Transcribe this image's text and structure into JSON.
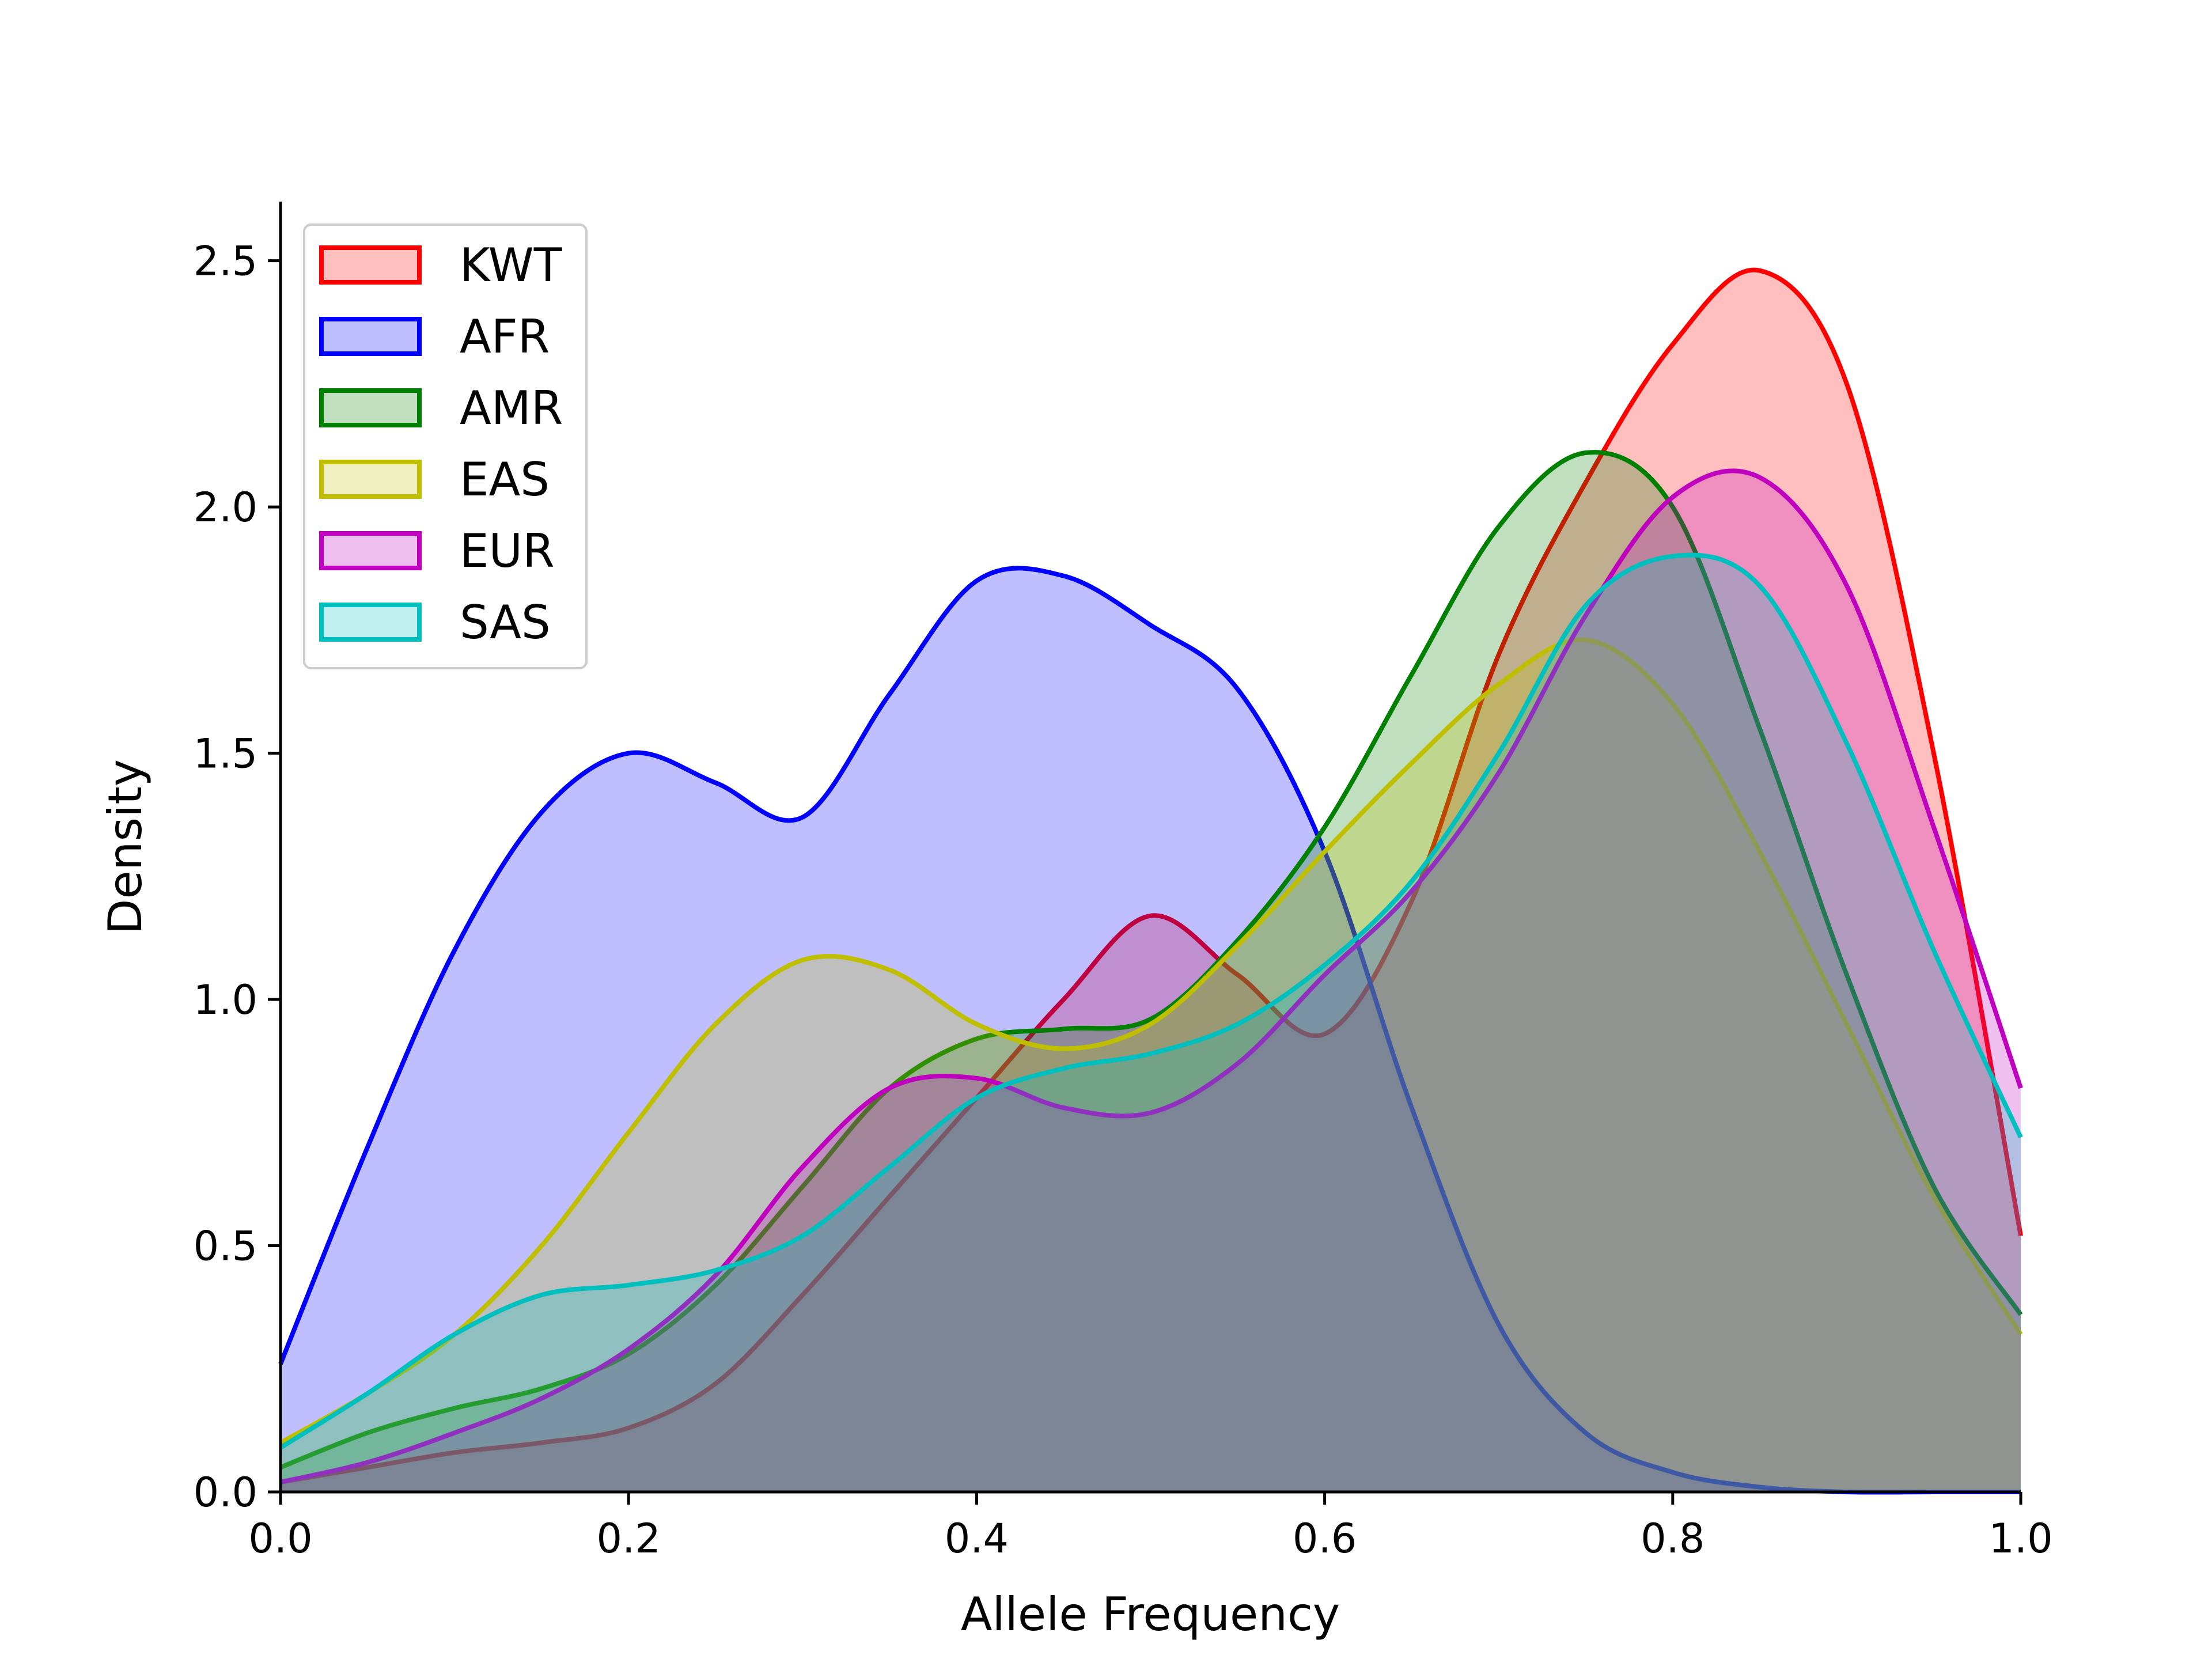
{
  "chart_data": {
    "type": "area",
    "title": "",
    "xlabel": "Allele Frequency",
    "ylabel": "Density",
    "xlim": [
      0.0,
      1.0
    ],
    "ylim": [
      0.0,
      2.62
    ],
    "xticks": [
      "0.0",
      "0.2",
      "0.4",
      "0.6",
      "0.8",
      "1.0"
    ],
    "yticks": [
      "0.0",
      "0.5",
      "1.0",
      "1.5",
      "2.0",
      "2.5"
    ],
    "grid": false,
    "legend_position": "upper-left",
    "x": [
      0.0,
      0.05,
      0.1,
      0.15,
      0.2,
      0.25,
      0.3,
      0.35,
      0.4,
      0.45,
      0.5,
      0.55,
      0.6,
      0.65,
      0.7,
      0.75,
      0.8,
      0.85,
      0.9,
      0.95,
      1.0
    ],
    "series": [
      {
        "name": "KWT",
        "color": "#ff0000",
        "values": [
          0.02,
          0.05,
          0.08,
          0.1,
          0.13,
          0.22,
          0.4,
          0.6,
          0.8,
          1.0,
          1.17,
          1.05,
          0.93,
          1.2,
          1.7,
          2.05,
          2.33,
          2.48,
          2.25,
          1.5,
          0.52
        ]
      },
      {
        "name": "AFR",
        "color": "#0000ff",
        "values": [
          0.26,
          0.7,
          1.1,
          1.38,
          1.5,
          1.44,
          1.37,
          1.62,
          1.85,
          1.86,
          1.76,
          1.63,
          1.3,
          0.78,
          0.34,
          0.12,
          0.04,
          0.01,
          0.0,
          0.0,
          0.0
        ]
      },
      {
        "name": "AMR",
        "color": "#008000",
        "values": [
          0.05,
          0.12,
          0.17,
          0.21,
          0.28,
          0.42,
          0.62,
          0.82,
          0.92,
          0.94,
          0.96,
          1.12,
          1.35,
          1.66,
          1.96,
          2.11,
          2.0,
          1.55,
          1.05,
          0.62,
          0.36
        ]
      },
      {
        "name": "EAS",
        "color": "#bfbf00",
        "values": [
          0.1,
          0.2,
          0.32,
          0.5,
          0.73,
          0.95,
          1.08,
          1.06,
          0.95,
          0.9,
          0.95,
          1.11,
          1.3,
          1.48,
          1.64,
          1.73,
          1.6,
          1.3,
          0.95,
          0.6,
          0.32
        ]
      },
      {
        "name": "EUR",
        "color": "#bf00bf",
        "values": [
          0.02,
          0.06,
          0.12,
          0.19,
          0.29,
          0.44,
          0.66,
          0.82,
          0.84,
          0.78,
          0.77,
          0.87,
          1.05,
          1.22,
          1.46,
          1.78,
          2.02,
          2.06,
          1.84,
          1.35,
          0.82
        ]
      },
      {
        "name": "SAS",
        "color": "#00bfbf",
        "values": [
          0.09,
          0.2,
          0.32,
          0.4,
          0.42,
          0.45,
          0.52,
          0.66,
          0.8,
          0.86,
          0.89,
          0.95,
          1.07,
          1.24,
          1.5,
          1.8,
          1.9,
          1.84,
          1.52,
          1.1,
          0.72
        ]
      }
    ]
  }
}
